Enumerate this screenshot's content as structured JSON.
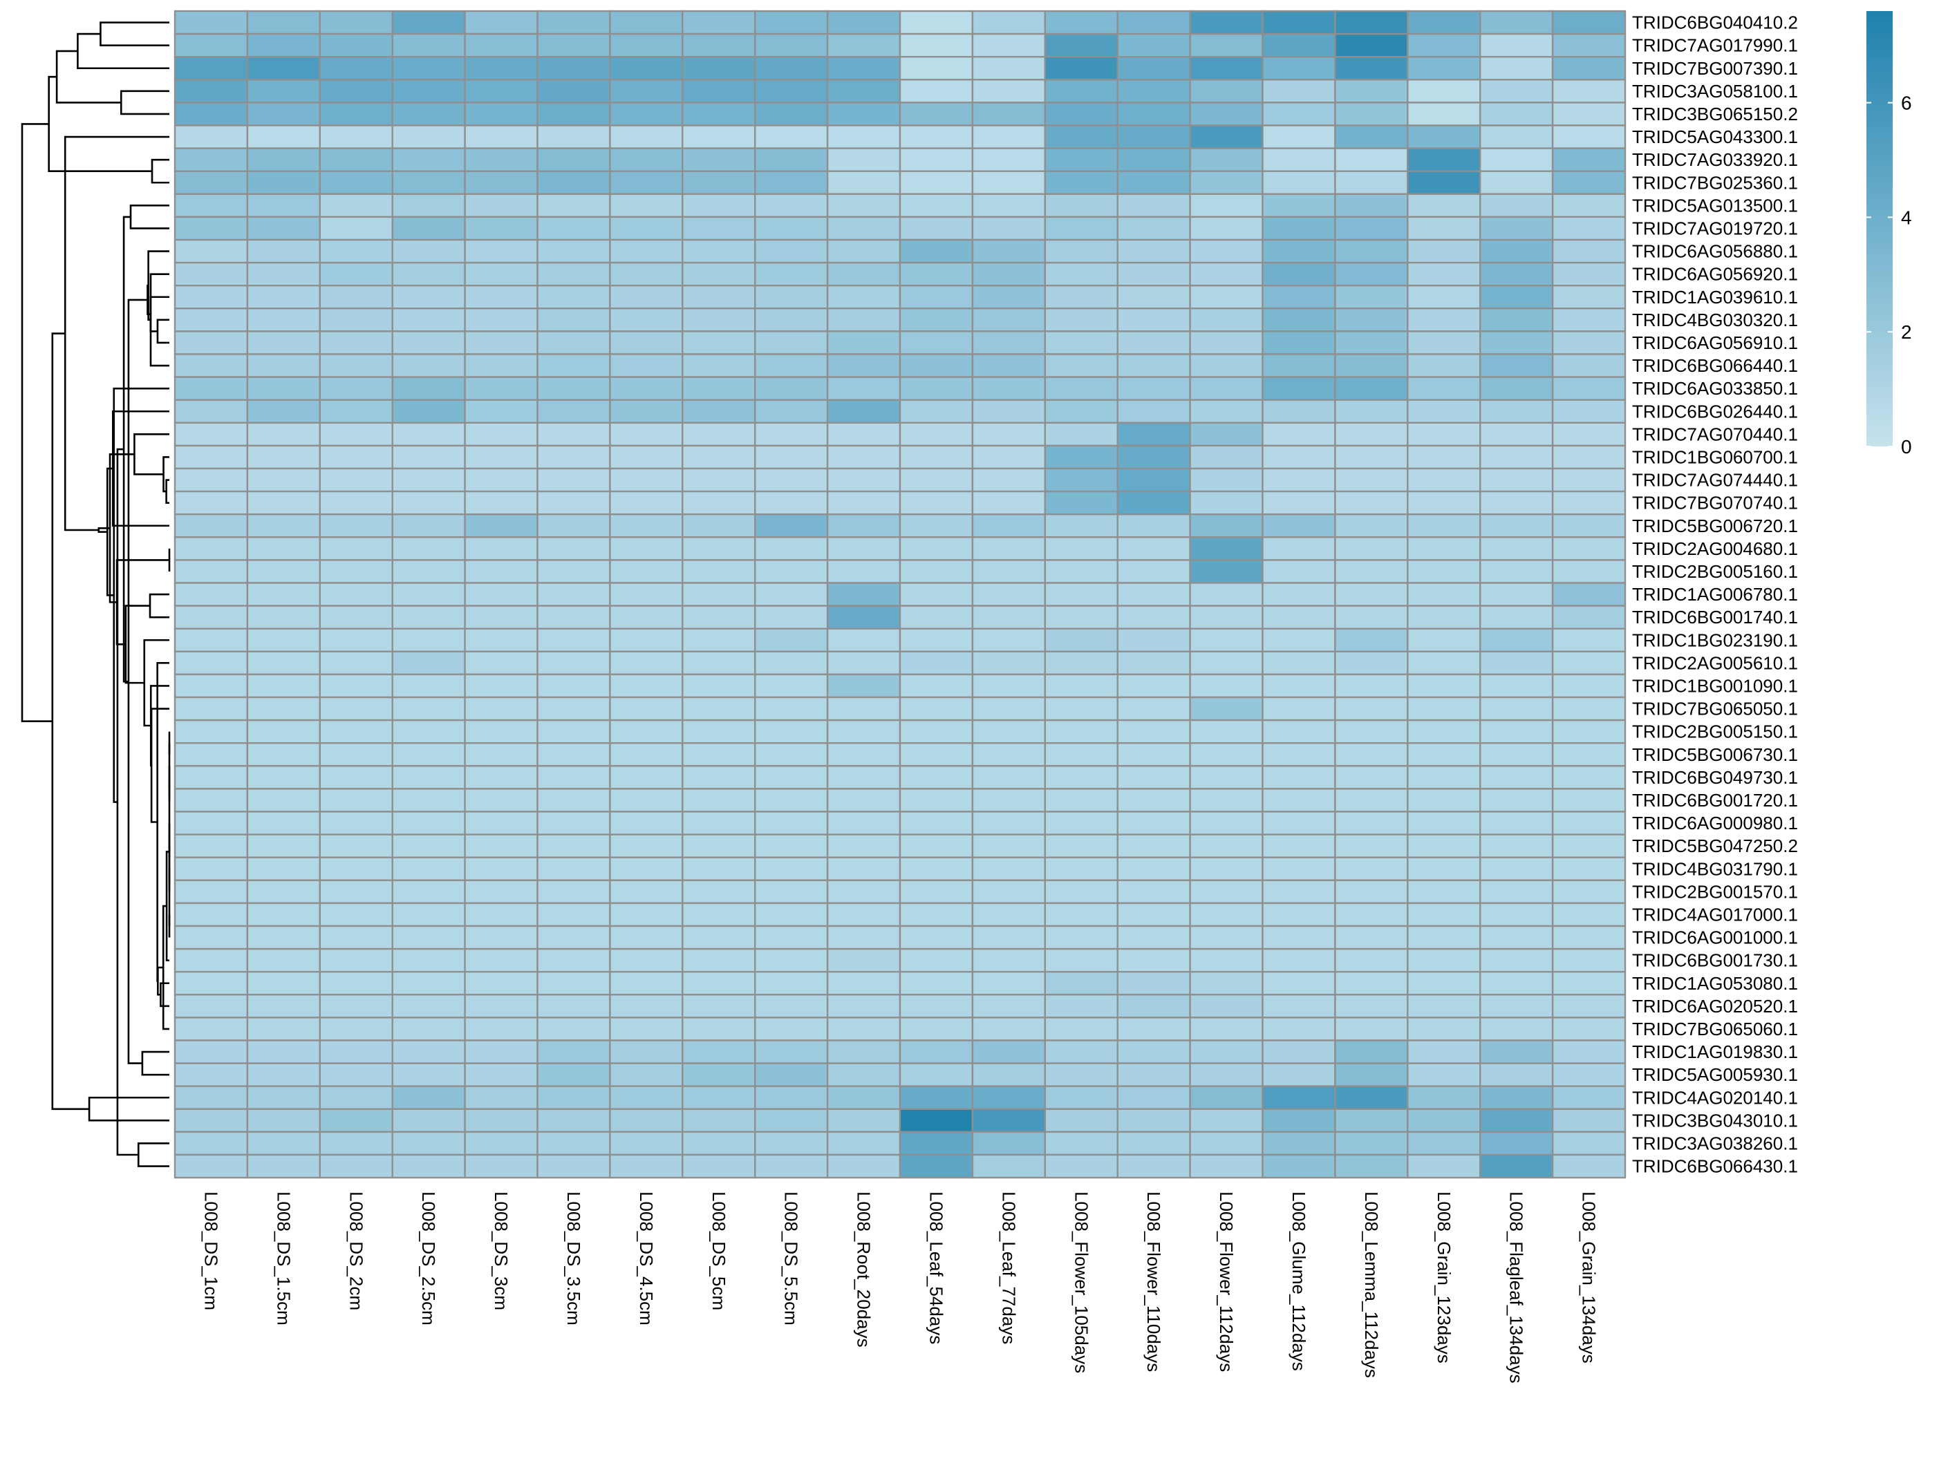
{
  "chart_data": {
    "type": "heatmap",
    "columns": [
      "L008_DS_1cm",
      "L008_DS_1.5cm",
      "L008_DS_2cm",
      "L008_DS_2.5cm",
      "L008_DS_3cm",
      "L008_DS_3.5cm",
      "L008_DS_4.5cm",
      "L008_DS_5cm",
      "L008_DS_5.5cm",
      "L008_Root_20days",
      "L008_Leaf_54days",
      "L008_Leaf_77days",
      "L008_Flower_105days",
      "L008_Flower_110days",
      "L008_Flower_112days",
      "L008_Glume_112days",
      "L008_Lemma_112days",
      "L008_Grain_123days",
      "L008_Flagleaf_134days",
      "L008_Grain_134days"
    ],
    "rows": [
      "TRIDC6BG040410.2",
      "TRIDC7AG017990.1",
      "TRIDC7BG007390.1",
      "TRIDC3AG058100.1",
      "TRIDC3BG065150.2",
      "TRIDC5AG043300.1",
      "TRIDC7AG033920.1",
      "TRIDC7BG025360.1",
      "TRIDC5AG013500.1",
      "TRIDC7AG019720.1",
      "TRIDC6AG056880.1",
      "TRIDC6AG056920.1",
      "TRIDC1AG039610.1",
      "TRIDC4BG030320.1",
      "TRIDC6AG056910.1",
      "TRIDC6BG066440.1",
      "TRIDC6AG033850.1",
      "TRIDC6BG026440.1",
      "TRIDC7AG070440.1",
      "TRIDC1BG060700.1",
      "TRIDC7AG074440.1",
      "TRIDC7BG070740.1",
      "TRIDC5BG006720.1",
      "TRIDC2AG004680.1",
      "TRIDC2BG005160.1",
      "TRIDC1AG006780.1",
      "TRIDC6BG001740.1",
      "TRIDC1BG023190.1",
      "TRIDC2AG005610.1",
      "TRIDC1BG001090.1",
      "TRIDC7BG065050.1",
      "TRIDC2BG005150.1",
      "TRIDC5BG006730.1",
      "TRIDC6BG049730.1",
      "TRIDC6BG001720.1",
      "TRIDC6AG000980.1",
      "TRIDC5BG047250.2",
      "TRIDC4BG031790.1",
      "TRIDC2BG001570.1",
      "TRIDC4AG017000.1",
      "TRIDC6AG001000.1",
      "TRIDC6BG001730.1",
      "TRIDC1AG053080.1",
      "TRIDC6AG020520.1",
      "TRIDC7BG065060.1",
      "TRIDC1AG019830.1",
      "TRIDC5AG005930.1",
      "TRIDC4AG020140.1",
      "TRIDC3BG043010.1",
      "TRIDC3AG038260.1",
      "TRIDC6BG066430.1"
    ],
    "values": [
      [
        2.6,
        3.0,
        2.9,
        4.5,
        2.5,
        2.9,
        3.0,
        2.7,
        3.2,
        3.4,
        0.5,
        1.4,
        3.2,
        3.5,
        5.6,
        6.0,
        6.5,
        4.3,
        2.9,
        4.1
      ],
      [
        2.8,
        3.5,
        3.3,
        2.9,
        2.8,
        2.9,
        3.0,
        3.0,
        3.0,
        2.4,
        0.5,
        0.8,
        5.3,
        3.3,
        3.0,
        4.7,
        7.0,
        3.1,
        0.8,
        2.7
      ],
      [
        5.1,
        5.5,
        4.4,
        4.2,
        4.3,
        4.5,
        4.8,
        4.7,
        4.5,
        4.2,
        0.5,
        0.8,
        6.2,
        4.3,
        5.5,
        3.7,
        6.0,
        3.2,
        0.8,
        3.3
      ],
      [
        4.6,
        3.8,
        4.4,
        4.2,
        4.0,
        4.5,
        3.9,
        4.4,
        4.4,
        4.1,
        0.6,
        0.8,
        3.8,
        3.8,
        3.0,
        1.3,
        2.3,
        0.5,
        1.2,
        0.8
      ],
      [
        4.2,
        3.5,
        4.0,
        3.8,
        3.6,
        4.1,
        3.7,
        3.7,
        4.1,
        3.6,
        2.9,
        3.0,
        4.2,
        4.0,
        3.4,
        1.8,
        2.3,
        0.5,
        1.4,
        0.8
      ],
      [
        0.8,
        0.6,
        0.7,
        0.8,
        0.7,
        0.8,
        0.7,
        0.6,
        0.6,
        0.6,
        0.6,
        0.6,
        4.3,
        4.3,
        5.6,
        0.6,
        3.8,
        3.4,
        1.0,
        0.6
      ],
      [
        2.5,
        2.9,
        2.9,
        2.5,
        2.6,
        3.0,
        2.8,
        2.6,
        2.9,
        0.8,
        0.6,
        0.6,
        3.6,
        3.8,
        2.7,
        0.7,
        0.6,
        5.9,
        0.6,
        3.2
      ],
      [
        2.9,
        3.3,
        3.2,
        3.0,
        2.9,
        3.4,
        3.1,
        2.9,
        3.1,
        0.8,
        0.6,
        0.6,
        3.6,
        3.7,
        2.4,
        1.0,
        1.0,
        6.2,
        0.8,
        3.2
      ],
      [
        2.0,
        2.0,
        1.1,
        1.6,
        1.3,
        1.1,
        1.1,
        1.2,
        1.2,
        1.1,
        1.0,
        1.0,
        1.5,
        1.3,
        0.9,
        2.3,
        2.6,
        1.1,
        1.3,
        1.1
      ],
      [
        2.3,
        2.5,
        1.0,
        2.9,
        2.2,
        1.8,
        1.8,
        1.7,
        1.8,
        1.5,
        1.3,
        1.3,
        2.0,
        1.6,
        1.0,
        3.3,
        3.1,
        1.1,
        2.6,
        1.2
      ],
      [
        1.1,
        1.3,
        1.4,
        1.3,
        1.2,
        1.4,
        1.4,
        1.4,
        1.7,
        1.6,
        3.3,
        2.6,
        1.5,
        1.3,
        1.2,
        3.3,
        2.8,
        1.3,
        3.3,
        1.3
      ],
      [
        1.3,
        1.3,
        1.8,
        1.6,
        1.4,
        1.6,
        1.6,
        1.5,
        1.8,
        2.1,
        2.2,
        2.6,
        1.4,
        1.3,
        1.2,
        3.9,
        3.1,
        1.2,
        3.4,
        1.3
      ],
      [
        1.2,
        1.2,
        1.3,
        1.2,
        1.2,
        1.4,
        1.3,
        1.3,
        1.5,
        1.4,
        2.0,
        2.5,
        1.3,
        1.1,
        1.0,
        3.1,
        2.2,
        1.0,
        3.7,
        1.1
      ],
      [
        1.2,
        1.2,
        1.3,
        1.2,
        1.2,
        1.6,
        1.4,
        1.3,
        1.5,
        1.5,
        2.2,
        2.1,
        1.3,
        1.2,
        1.4,
        3.3,
        2.6,
        1.2,
        2.9,
        1.2
      ],
      [
        1.3,
        1.3,
        1.3,
        1.3,
        1.3,
        1.5,
        1.5,
        1.4,
        1.6,
        2.2,
        2.0,
        2.1,
        1.4,
        1.3,
        1.3,
        3.3,
        2.6,
        1.3,
        2.6,
        1.3
      ],
      [
        1.5,
        1.5,
        1.5,
        1.5,
        1.5,
        1.8,
        1.7,
        1.6,
        1.9,
        2.5,
        2.6,
        2.5,
        1.6,
        1.6,
        1.5,
        3.0,
        2.9,
        1.5,
        3.1,
        1.5
      ],
      [
        2.2,
        2.2,
        2.1,
        3.0,
        2.2,
        2.2,
        2.2,
        2.2,
        2.4,
        2.0,
        2.2,
        2.2,
        2.1,
        2.0,
        2.0,
        4.0,
        4.0,
        2.0,
        2.8,
        2.0
      ],
      [
        1.6,
        2.5,
        1.9,
        3.3,
        1.8,
        2.1,
        2.3,
        2.5,
        2.1,
        3.9,
        1.4,
        1.3,
        1.9,
        1.7,
        1.4,
        1.5,
        1.4,
        1.2,
        1.4,
        1.2
      ],
      [
        0.8,
        0.8,
        0.8,
        0.8,
        0.8,
        0.8,
        0.8,
        0.8,
        0.8,
        0.8,
        0.8,
        0.8,
        1.2,
        4.4,
        2.6,
        0.8,
        0.8,
        0.8,
        0.8,
        0.8
      ],
      [
        0.8,
        0.8,
        0.8,
        0.8,
        0.8,
        0.8,
        0.8,
        0.8,
        0.8,
        0.8,
        0.8,
        0.8,
        3.6,
        4.3,
        1.3,
        0.8,
        0.8,
        0.8,
        0.8,
        0.8
      ],
      [
        0.8,
        0.8,
        0.8,
        0.8,
        0.8,
        0.8,
        0.8,
        0.8,
        0.8,
        0.8,
        0.8,
        0.8,
        3.2,
        4.4,
        1.2,
        0.8,
        0.8,
        0.8,
        0.8,
        0.8
      ],
      [
        0.8,
        0.8,
        0.8,
        0.8,
        0.8,
        0.8,
        0.8,
        0.8,
        0.8,
        0.8,
        0.8,
        0.8,
        3.3,
        4.6,
        1.2,
        0.8,
        0.8,
        0.8,
        0.8,
        0.8
      ],
      [
        1.5,
        1.4,
        1.4,
        1.5,
        2.6,
        1.5,
        1.4,
        1.5,
        3.5,
        2.1,
        1.4,
        2.0,
        1.4,
        1.4,
        3.0,
        2.5,
        1.4,
        1.4,
        1.4,
        1.4
      ],
      [
        1.0,
        1.0,
        1.0,
        1.0,
        1.0,
        1.0,
        1.0,
        1.0,
        1.0,
        1.0,
        1.0,
        1.0,
        1.0,
        1.0,
        4.7,
        1.0,
        1.0,
        1.0,
        1.0,
        1.0
      ],
      [
        1.0,
        1.0,
        1.0,
        1.0,
        1.0,
        1.0,
        1.0,
        1.0,
        1.0,
        1.0,
        1.0,
        1.0,
        1.0,
        1.0,
        4.7,
        1.0,
        1.0,
        1.0,
        1.0,
        1.0
      ],
      [
        1.0,
        1.0,
        1.0,
        1.0,
        1.0,
        1.0,
        1.0,
        1.0,
        1.0,
        3.3,
        1.0,
        1.0,
        1.0,
        1.0,
        1.0,
        1.0,
        1.0,
        1.0,
        1.0,
        2.5
      ],
      [
        1.0,
        1.0,
        1.0,
        1.0,
        1.0,
        1.0,
        1.0,
        1.0,
        1.0,
        4.4,
        1.0,
        1.0,
        1.0,
        1.0,
        1.0,
        1.0,
        1.0,
        1.0,
        1.0,
        1.6
      ],
      [
        0.9,
        0.9,
        0.9,
        0.9,
        0.9,
        0.9,
        0.9,
        0.9,
        1.6,
        0.9,
        0.9,
        0.9,
        1.5,
        1.2,
        0.9,
        0.9,
        2.0,
        0.9,
        2.0,
        0.9
      ],
      [
        0.9,
        0.9,
        0.9,
        1.5,
        0.9,
        0.9,
        0.9,
        0.9,
        1.0,
        1.0,
        1.2,
        1.1,
        1.1,
        1.1,
        0.9,
        1.0,
        1.2,
        0.9,
        1.2,
        0.9
      ],
      [
        0.9,
        0.9,
        0.9,
        0.9,
        0.9,
        0.9,
        0.9,
        0.9,
        0.9,
        2.2,
        0.9,
        0.9,
        0.9,
        0.9,
        0.9,
        0.9,
        0.9,
        0.9,
        0.9,
        0.9
      ],
      [
        0.9,
        0.9,
        0.9,
        0.9,
        0.9,
        0.9,
        0.9,
        0.9,
        0.9,
        0.9,
        0.9,
        0.9,
        0.9,
        0.9,
        2.2,
        0.9,
        0.9,
        0.9,
        0.9,
        0.9
      ],
      [
        0.9,
        0.9,
        0.9,
        0.9,
        0.9,
        0.9,
        0.9,
        0.9,
        0.9,
        0.9,
        0.9,
        0.9,
        0.9,
        0.9,
        0.9,
        0.9,
        0.9,
        0.9,
        0.9,
        0.9
      ],
      [
        0.9,
        0.9,
        0.9,
        0.9,
        0.9,
        0.9,
        0.9,
        0.9,
        0.9,
        0.9,
        0.9,
        0.9,
        0.9,
        0.9,
        0.9,
        0.9,
        0.9,
        0.9,
        0.9,
        0.9
      ],
      [
        0.9,
        0.9,
        0.9,
        0.9,
        0.9,
        0.9,
        0.9,
        0.9,
        0.9,
        0.9,
        0.9,
        0.9,
        0.9,
        0.9,
        0.9,
        0.9,
        0.9,
        0.9,
        0.9,
        0.9
      ],
      [
        0.9,
        0.9,
        0.9,
        0.9,
        0.9,
        0.9,
        0.9,
        0.9,
        0.9,
        0.9,
        0.9,
        0.9,
        0.9,
        0.9,
        0.9,
        0.9,
        0.9,
        0.9,
        0.9,
        0.9
      ],
      [
        0.9,
        0.9,
        0.9,
        0.9,
        0.9,
        0.9,
        0.9,
        0.9,
        0.9,
        0.9,
        0.9,
        0.9,
        0.9,
        0.9,
        0.9,
        0.9,
        0.9,
        0.9,
        0.9,
        0.9
      ],
      [
        0.9,
        0.9,
        0.9,
        0.9,
        0.9,
        0.9,
        0.9,
        0.9,
        0.9,
        0.9,
        0.9,
        0.9,
        0.9,
        0.9,
        0.9,
        0.9,
        0.9,
        0.9,
        0.9,
        0.9
      ],
      [
        0.9,
        0.9,
        0.9,
        0.9,
        0.9,
        0.9,
        0.9,
        0.9,
        0.9,
        0.9,
        0.9,
        0.9,
        0.9,
        0.9,
        0.9,
        0.9,
        0.9,
        0.9,
        0.9,
        0.9
      ],
      [
        0.9,
        0.9,
        0.9,
        0.9,
        0.9,
        0.9,
        0.9,
        0.9,
        0.9,
        0.9,
        0.9,
        0.9,
        0.9,
        0.9,
        0.9,
        0.9,
        0.9,
        0.9,
        0.9,
        0.9
      ],
      [
        0.9,
        0.9,
        0.9,
        0.9,
        0.9,
        0.9,
        0.9,
        0.9,
        0.9,
        0.9,
        0.9,
        0.9,
        0.9,
        0.9,
        0.9,
        0.9,
        0.9,
        0.9,
        0.9,
        0.9
      ],
      [
        0.9,
        0.9,
        0.9,
        0.9,
        0.9,
        0.9,
        0.9,
        0.9,
        0.9,
        0.9,
        0.9,
        0.9,
        0.9,
        0.9,
        0.9,
        0.9,
        0.9,
        0.9,
        0.9,
        0.9
      ],
      [
        0.9,
        0.9,
        0.9,
        0.9,
        0.9,
        0.9,
        0.9,
        0.9,
        0.9,
        1.1,
        0.9,
        0.9,
        0.9,
        0.9,
        0.9,
        0.9,
        0.9,
        0.9,
        0.9,
        0.9
      ],
      [
        0.9,
        0.9,
        0.9,
        0.9,
        0.9,
        0.9,
        0.9,
        0.9,
        0.9,
        0.9,
        0.9,
        0.9,
        1.6,
        1.3,
        1.1,
        0.9,
        0.9,
        0.9,
        0.9,
        0.9
      ],
      [
        1.0,
        1.0,
        1.0,
        1.0,
        1.0,
        1.0,
        1.0,
        1.0,
        1.0,
        1.0,
        1.0,
        1.0,
        1.2,
        1.5,
        1.3,
        1.0,
        1.0,
        1.0,
        1.0,
        1.0
      ],
      [
        1.0,
        1.0,
        1.0,
        1.0,
        1.0,
        1.0,
        1.0,
        1.0,
        1.0,
        1.0,
        1.0,
        1.0,
        1.0,
        1.0,
        1.0,
        1.0,
        1.0,
        1.0,
        1.0,
        1.0
      ],
      [
        1.2,
        1.2,
        1.2,
        1.2,
        1.2,
        2.0,
        1.5,
        1.8,
        1.8,
        1.6,
        2.0,
        2.5,
        1.4,
        1.4,
        1.4,
        1.3,
        3.0,
        1.2,
        2.6,
        1.2
      ],
      [
        1.2,
        1.2,
        1.2,
        1.2,
        1.2,
        2.2,
        1.5,
        2.2,
        2.6,
        1.5,
        1.4,
        1.5,
        1.3,
        1.3,
        1.3,
        1.3,
        2.9,
        1.2,
        1.3,
        1.2
      ],
      [
        1.6,
        1.6,
        1.6,
        2.6,
        1.6,
        1.9,
        1.8,
        1.8,
        2.0,
        2.2,
        4.3,
        4.2,
        1.8,
        1.7,
        3.0,
        5.4,
        5.6,
        2.4,
        3.3,
        1.8
      ],
      [
        1.5,
        1.5,
        2.2,
        1.5,
        1.5,
        1.6,
        1.6,
        1.6,
        1.8,
        1.5,
        7.5,
        5.8,
        1.5,
        1.5,
        1.4,
        3.3,
        2.3,
        2.3,
        4.5,
        1.5
      ],
      [
        1.4,
        1.4,
        1.4,
        1.4,
        1.4,
        1.4,
        1.4,
        1.4,
        1.4,
        1.4,
        4.6,
        2.8,
        1.4,
        1.4,
        1.4,
        2.6,
        2.2,
        2.1,
        3.5,
        1.4
      ],
      [
        1.3,
        1.3,
        1.3,
        1.3,
        1.3,
        1.3,
        1.3,
        1.3,
        1.3,
        1.3,
        4.7,
        1.6,
        1.3,
        1.3,
        1.3,
        2.6,
        2.4,
        1.3,
        5.2,
        1.3
      ]
    ],
    "color_scale": {
      "min": 0,
      "max": 7.6,
      "low_color": "#c6e2ed",
      "high_color": "#1f81ad",
      "ticks": [
        "0",
        "2",
        "4",
        "6"
      ]
    },
    "row_dendrogram": true,
    "legend_position": "right"
  }
}
